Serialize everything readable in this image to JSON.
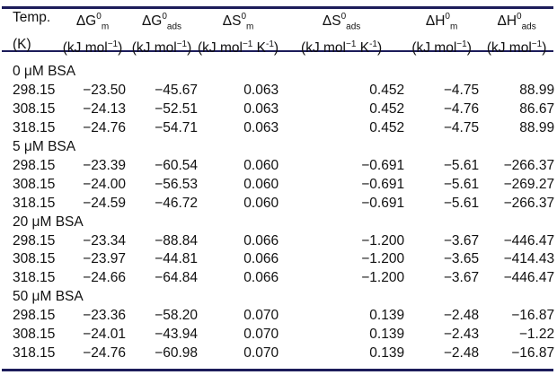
{
  "table": {
    "headers": [
      {
        "symbol": "ΔG",
        "sup": "0",
        "sub": "m",
        "unit": "(kJ mol",
        "unit_exp": "−1",
        "unit_tail": ")"
      },
      {
        "symbol": "ΔG",
        "sup": "0",
        "sub": "ads",
        "unit": "(kJ mol",
        "unit_exp": "−1",
        "unit_tail": ")"
      },
      {
        "symbol": "ΔS",
        "sup": "0",
        "sub": "m",
        "unit": "(kJ mol",
        "unit_exp": "−1",
        "unit_tail": " K",
        "unit_exp2": "-1",
        "unit_tail2": ")"
      },
      {
        "symbol": "ΔS",
        "sup": "0",
        "sub": "ads",
        "unit": "(kJ mol",
        "unit_exp": "−1",
        "unit_tail": " K",
        "unit_exp2": "-1",
        "unit_tail2": ")"
      },
      {
        "symbol": "ΔH",
        "sup": "0",
        "sub": "m",
        "unit": "(kJ mol",
        "unit_exp": "−1",
        "unit_tail": ")"
      },
      {
        "symbol": "ΔH",
        "sup": "0",
        "sub": "ads",
        "unit": "(kJ mol",
        "unit_exp": "−1",
        "unit_tail": ")"
      }
    ],
    "temp_header": "Temp.",
    "temp_unit": "(K)",
    "groups": [
      {
        "label": "0 μM BSA",
        "rows": [
          [
            "298.15",
            "−23.50",
            "−45.67",
            "0.063",
            "0.452",
            "−4.75",
            "88.99"
          ],
          [
            "308.15",
            "−24.13",
            "−52.51",
            "0.063",
            "0.452",
            "−4.76",
            "86.67"
          ],
          [
            "318.15",
            "−24.76",
            "−54.71",
            "0.063",
            "0.452",
            "−4.75",
            "88.99"
          ]
        ]
      },
      {
        "label": "5 μM BSA",
        "rows": [
          [
            "298.15",
            "−23.39",
            "−60.54",
            "0.060",
            "−0.691",
            "−5.61",
            "−266.37"
          ],
          [
            "308.15",
            "−24.00",
            "−56.53",
            "0.060",
            "−0.691",
            "−5.61",
            "−269.27"
          ],
          [
            "318.15",
            "−24.59",
            "−46.72",
            "0.060",
            "−0.691",
            "−5.61",
            "−266.37"
          ]
        ]
      },
      {
        "label": "20 μM BSA",
        "rows": [
          [
            "298.15",
            "−23.34",
            "−88.84",
            "0.066",
            "−1.200",
            "−3.67",
            "−446.47"
          ],
          [
            "308.15",
            "−23.97",
            "−44.81",
            "0.066",
            "−1.200",
            "−3.65",
            "−414.43"
          ],
          [
            "318.15",
            "−24.66",
            "−64.84",
            "0.066",
            "−1.200",
            "−3.67",
            "−446.47"
          ]
        ]
      },
      {
        "label": "50 μM BSA",
        "rows": [
          [
            "298.15",
            "−23.36",
            "−58.20",
            "0.070",
            "0.139",
            "−2.48",
            "−16.87"
          ],
          [
            "308.15",
            "−24.01",
            "−43.94",
            "0.070",
            "0.139",
            "−2.43",
            "−1.22"
          ],
          [
            "318.15",
            "−24.76",
            "−60.98",
            "0.070",
            "0.139",
            "−2.48",
            "−16.87"
          ]
        ]
      }
    ]
  }
}
